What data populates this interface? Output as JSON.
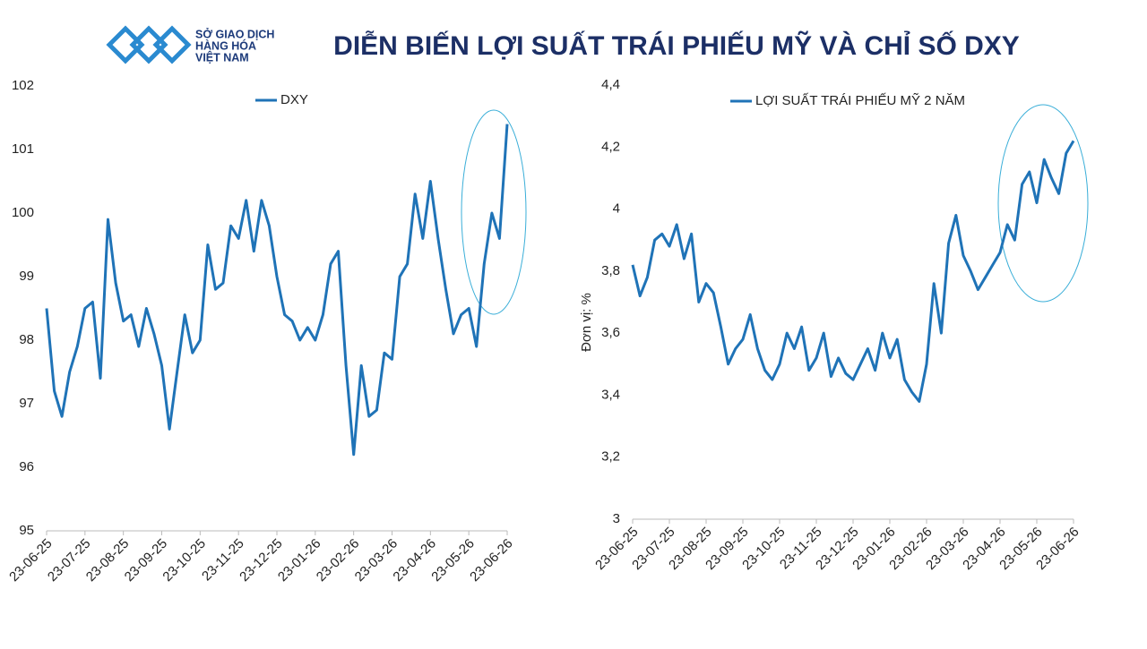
{
  "header": {
    "title": "DIỄN BIẾN LỢI SUẤT TRÁI PHIẾU MỸ VÀ CHỈ SỐ DXY",
    "logo": [
      "SỞ GIAO DỊCH",
      "HÀNG HÓA",
      "VIỆT NAM"
    ]
  },
  "chart_data": [
    {
      "type": "line",
      "categories": [
        "23-06-25",
        null,
        null,
        null,
        null,
        "23-07-25",
        null,
        null,
        null,
        null,
        "23-08-25",
        null,
        null,
        null,
        null,
        "23-09-25",
        null,
        null,
        null,
        null,
        "23-10-25",
        null,
        null,
        null,
        null,
        "23-11-25",
        null,
        null,
        null,
        null,
        "23-12-25",
        null,
        null,
        null,
        null,
        "23-01-26",
        null,
        null,
        null,
        null,
        "23-02-26",
        null,
        null,
        null,
        null,
        "23-03-26",
        null,
        null,
        null,
        null,
        "23-04-26",
        null,
        null,
        null,
        null,
        "23-05-26",
        null,
        null,
        null,
        null,
        "23-06-26"
      ],
      "series": [
        {
          "name": "DXY",
          "color": "#1f73b7",
          "values": [
            98.5,
            97.2,
            96.8,
            97.5,
            97.9,
            98.5,
            98.6,
            97.4,
            99.9,
            98.9,
            98.3,
            98.4,
            97.9,
            98.5,
            98.1,
            97.6,
            96.6,
            97.5,
            98.4,
            97.8,
            98.0,
            99.5,
            98.8,
            98.9,
            99.8,
            99.6,
            100.2,
            99.4,
            100.2,
            99.8,
            99.0,
            98.4,
            98.3,
            98.0,
            98.2,
            98.0,
            98.4,
            99.2,
            99.4,
            97.6,
            96.2,
            97.6,
            96.8,
            96.9,
            97.8,
            97.7,
            99.0,
            99.2,
            100.3,
            99.6,
            100.5,
            99.6,
            98.8,
            98.1,
            98.4,
            98.5,
            97.9,
            99.2,
            100.0,
            99.6,
            101.4
          ]
        }
      ],
      "ylim": [
        95,
        102
      ],
      "yticks": [
        95,
        96,
        97,
        98,
        99,
        100,
        101,
        102
      ],
      "grid": false,
      "legend": "top"
    },
    {
      "type": "line",
      "y_label": "Đơn vị: %",
      "categories": [
        "23-06-25",
        null,
        null,
        null,
        null,
        "23-07-25",
        null,
        null,
        null,
        null,
        "23-08-25",
        null,
        null,
        null,
        null,
        "23-09-25",
        null,
        null,
        null,
        null,
        "23-10-25",
        null,
        null,
        null,
        null,
        "23-11-25",
        null,
        null,
        null,
        null,
        "23-12-25",
        null,
        null,
        null,
        null,
        "23-01-26",
        null,
        null,
        null,
        null,
        "23-02-26",
        null,
        null,
        null,
        null,
        "23-03-26",
        null,
        null,
        null,
        null,
        "23-04-26",
        null,
        null,
        null,
        null,
        "23-05-26",
        null,
        null,
        null,
        null,
        "23-06-26"
      ],
      "series": [
        {
          "name": "LỢI SUẤT TRÁI PHIẾU MỸ 2 NĂM",
          "color": "#1f73b7",
          "values": [
            3.82,
            3.72,
            3.78,
            3.9,
            3.92,
            3.88,
            3.95,
            3.84,
            3.92,
            3.7,
            3.76,
            3.73,
            3.62,
            3.5,
            3.55,
            3.58,
            3.66,
            3.55,
            3.48,
            3.45,
            3.5,
            3.6,
            3.55,
            3.62,
            3.48,
            3.52,
            3.6,
            3.46,
            3.52,
            3.47,
            3.45,
            3.5,
            3.55,
            3.48,
            3.6,
            3.52,
            3.58,
            3.45,
            3.41,
            3.38,
            3.5,
            3.76,
            3.6,
            3.89,
            3.98,
            3.85,
            3.8,
            3.74,
            3.78,
            3.82,
            3.86,
            3.95,
            3.9,
            4.08,
            4.12,
            4.02,
            4.16,
            4.1,
            4.05,
            4.18,
            4.22
          ]
        }
      ],
      "ylim": [
        3,
        4.4
      ],
      "yticks": [
        3,
        {
          "value": 3.2,
          "label": "3,2"
        },
        {
          "value": 3.4,
          "label": "3,4"
        },
        {
          "value": 3.6,
          "label": "3,6"
        },
        {
          "value": 3.8,
          "label": "3,8"
        },
        4,
        {
          "value": 4.2,
          "label": "4,2"
        },
        {
          "value": 4.4,
          "label": "4,4"
        }
      ],
      "grid": false,
      "legend": "top"
    }
  ]
}
